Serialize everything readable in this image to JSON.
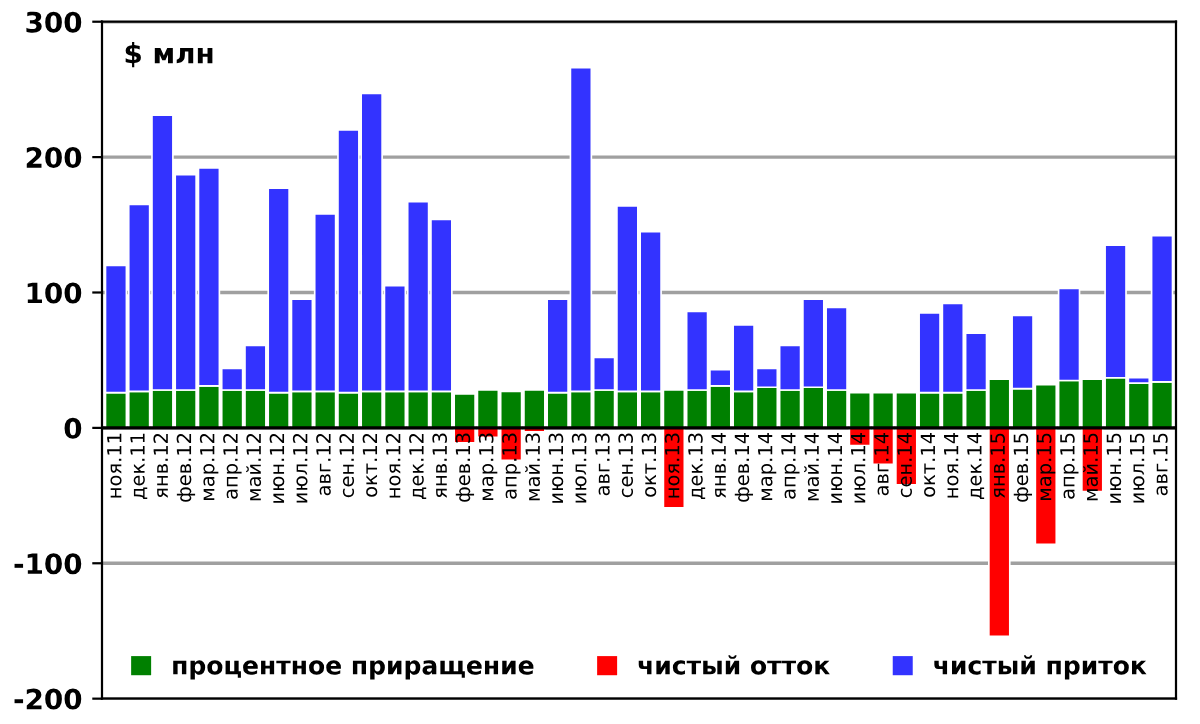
{
  "chart_data": {
    "type": "bar",
    "stacked": true,
    "ylabel": "$ млн",
    "categories": [
      "ноя.11",
      "дек.11",
      "янв.12",
      "фев.12",
      "мар.12",
      "апр.12",
      "май.12",
      "июн.12",
      "июл.12",
      "авг.12",
      "сен.12",
      "окт.12",
      "ноя.12",
      "дек.12",
      "янв.13",
      "фев.13",
      "мар.13",
      "апр.13",
      "май.13",
      "июн.13",
      "июл.13",
      "авг.13",
      "сен.13",
      "окт.13",
      "ноя.13",
      "дек.13",
      "янв.14",
      "фев.14",
      "мар.14",
      "апр.14",
      "май.14",
      "июн.14",
      "июл.14",
      "авг.14",
      "сен.14",
      "окт.14",
      "ноя.14",
      "дек.14",
      "янв.15",
      "фев.15",
      "мар.15",
      "апр.15",
      "май.15",
      "июн.15",
      "июл.15",
      "авг.15"
    ],
    "series": [
      {
        "name": "процентное приращение",
        "color": "#008000",
        "values": [
          26,
          27,
          28,
          28,
          31,
          28,
          28,
          26,
          27,
          27,
          26,
          27,
          27,
          27,
          27,
          25,
          28,
          27,
          28,
          26,
          27,
          28,
          27,
          27,
          28,
          28,
          31,
          27,
          30,
          28,
          30,
          28,
          26,
          26,
          26,
          26,
          26,
          28,
          36,
          29,
          32,
          35,
          36,
          37,
          33,
          34
        ]
      },
      {
        "name": "чистый отток",
        "color": "#ff0000",
        "values": [
          null,
          null,
          null,
          null,
          null,
          null,
          null,
          null,
          null,
          null,
          null,
          null,
          null,
          null,
          null,
          -11,
          -7,
          -24,
          -3,
          null,
          null,
          null,
          null,
          null,
          -59,
          null,
          null,
          null,
          null,
          null,
          null,
          null,
          -13,
          -27,
          -42,
          null,
          null,
          null,
          -154,
          null,
          -86,
          null,
          -47,
          null,
          null,
          null
        ]
      },
      {
        "name": "чистый приток",
        "color": "#3333ff",
        "values": [
          94,
          138,
          203,
          159,
          161,
          16,
          33,
          151,
          68,
          131,
          194,
          220,
          78,
          140,
          127,
          null,
          null,
          null,
          null,
          69,
          239,
          24,
          137,
          118,
          null,
          58,
          12,
          49,
          14,
          33,
          65,
          61,
          null,
          null,
          null,
          59,
          66,
          42,
          null,
          54,
          null,
          68,
          null,
          98,
          4,
          108
        ]
      }
    ],
    "ylim": [
      -200,
      300
    ],
    "yticks": [
      -200,
      -100,
      0,
      100,
      200,
      300
    ],
    "grid": "y",
    "legend": "bottom"
  }
}
